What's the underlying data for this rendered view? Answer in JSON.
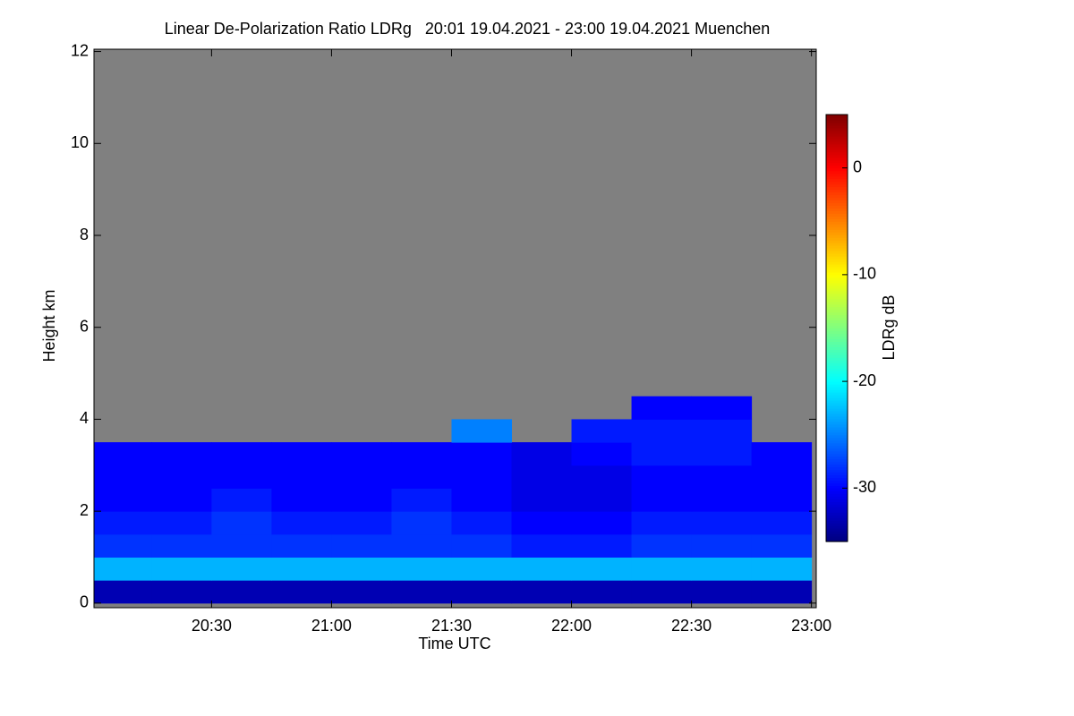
{
  "chart_data": {
    "type": "heatmap",
    "title": "Linear De-Polarization Ratio LDRg   20:01 19.04.2021 - 23:00 19.04.2021 Muenchen",
    "x_label": "Time UTC",
    "y_label": "Height km",
    "colorbar_label": "LDRg dB",
    "xlim": [
      20.01,
      23.02
    ],
    "xticks": [
      {
        "value": 20.5,
        "label": "20:30"
      },
      {
        "value": 21.0,
        "label": "21:00"
      },
      {
        "value": 21.5,
        "label": "21:30"
      },
      {
        "value": 22.0,
        "label": "22:00"
      },
      {
        "value": 22.5,
        "label": "22:30"
      },
      {
        "value": 23.0,
        "label": "23:00"
      }
    ],
    "ylim": [
      -0.1,
      12.05
    ],
    "yticks": [
      0,
      2,
      4,
      6,
      8,
      10,
      12
    ],
    "zlim": [
      -35,
      5
    ],
    "zticks": [
      -30,
      -20,
      -10,
      0
    ],
    "background_color": "#808080",
    "x": [
      20.125,
      20.375,
      20.625,
      20.875,
      21.125,
      21.375,
      21.625,
      21.875,
      22.125,
      22.375,
      22.625,
      22.875
    ],
    "y": [
      0.25,
      0.75,
      1.25,
      1.75,
      2.25,
      2.75,
      3.25,
      3.75,
      4.25
    ],
    "z": [
      [
        -33,
        -33,
        -33,
        -33,
        -33,
        -33,
        -33,
        -33,
        -33,
        -33,
        -33,
        -33
      ],
      [
        -23,
        -23,
        -23,
        -23,
        -23,
        -23,
        -23,
        -23,
        -23,
        -23,
        -23,
        -23
      ],
      [
        -28,
        -28,
        -28,
        -28,
        -28,
        -28,
        -28,
        -29,
        -29,
        -28,
        -28,
        -28
      ],
      [
        -29,
        -29,
        -28,
        -29,
        -29,
        -28,
        -29,
        -30,
        -30,
        -29,
        -29,
        -29
      ],
      [
        -30,
        -30,
        -29,
        -30,
        -30,
        -29,
        -30,
        -31,
        -31,
        -30,
        -30,
        -30
      ],
      [
        -30,
        -30,
        -30,
        -30,
        -30,
        -30,
        -30,
        -31,
        -31,
        -30,
        -30,
        -30
      ],
      [
        -30,
        -30,
        -30,
        -30,
        -30,
        -30,
        -30,
        -31,
        -30,
        -29,
        -29,
        -30
      ],
      [
        null,
        null,
        null,
        null,
        null,
        null,
        -25,
        null,
        -29,
        -29,
        -29,
        null
      ],
      [
        null,
        null,
        null,
        null,
        null,
        null,
        null,
        null,
        null,
        -30,
        -30,
        null
      ]
    ]
  }
}
